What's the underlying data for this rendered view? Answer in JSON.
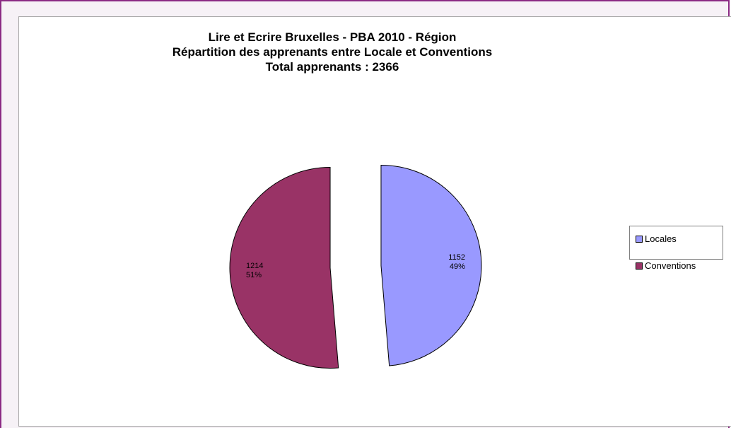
{
  "chart_data": {
    "type": "pie",
    "title_lines": [
      "Lire et Ecrire Bruxelles - PBA 2010 - Région",
      "Répartition des apprenants entre Locale et Conventions",
      "Total apprenants : 2366"
    ],
    "slices": [
      {
        "name": "Locales",
        "value": 1152,
        "percent_label": "49%",
        "color": "#9999ff"
      },
      {
        "name": "Conventions",
        "value": 1214,
        "percent_label": "51%",
        "color": "#993366"
      }
    ],
    "exploded": true,
    "legend_position": "right"
  }
}
